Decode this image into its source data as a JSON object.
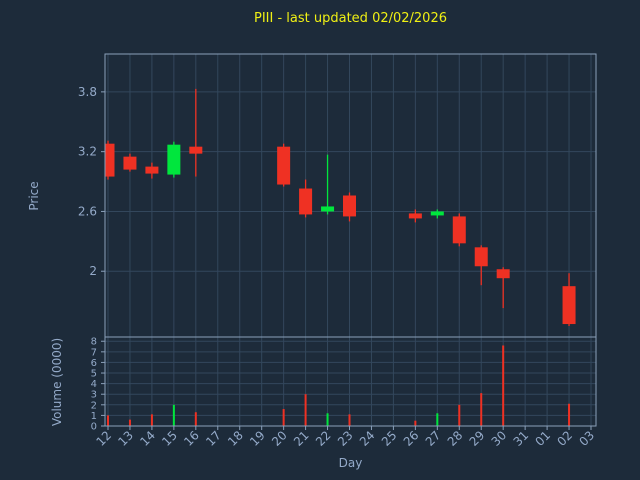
{
  "title": "PIII - last updated 02/02/2026",
  "colors": {
    "background": "#1d2b3a",
    "grid": "#33475c",
    "spine": "#8aa0ba",
    "tick_label": "#94aac9",
    "title": "#f0f014",
    "up": "#00e63d",
    "down": "#ef3123"
  },
  "chart_data": {
    "type": "candlestick",
    "title": "PIII - last updated 02/02/2026",
    "xlabel": "Day",
    "ylabel_price": "Price",
    "ylabel_volume": "Volume (0000)",
    "legend": "none",
    "grid": "on",
    "categories": [
      "12",
      "13",
      "14",
      "15",
      "16",
      "17",
      "18",
      "19",
      "20",
      "21",
      "22",
      "23",
      "24",
      "25",
      "26",
      "27",
      "28",
      "29",
      "30",
      "31",
      "01",
      "02",
      "03"
    ],
    "price_ticks": [
      2,
      2.6,
      3.2,
      3.8
    ],
    "price_ylim": [
      1.34,
      4.18
    ],
    "volume_ticks": [
      0,
      1,
      2,
      3,
      4,
      5,
      6,
      7,
      8
    ],
    "volume_ylim": [
      0,
      8.4
    ],
    "candles": [
      {
        "day": "12",
        "open": 3.28,
        "high": 3.31,
        "low": 2.92,
        "close": 2.95,
        "volume": 1.0
      },
      {
        "day": "13",
        "open": 3.15,
        "high": 3.18,
        "low": 3.0,
        "close": 3.02,
        "volume": 0.6
      },
      {
        "day": "14",
        "open": 3.05,
        "high": 3.09,
        "low": 2.93,
        "close": 2.98,
        "volume": 1.1
      },
      {
        "day": "15",
        "open": 2.97,
        "high": 3.3,
        "low": 2.94,
        "close": 3.27,
        "volume": 2.0
      },
      {
        "day": "16",
        "open": 3.25,
        "high": 3.83,
        "low": 2.95,
        "close": 3.18,
        "volume": 1.3
      },
      {
        "day": "20",
        "open": 3.25,
        "high": 3.28,
        "low": 2.85,
        "close": 2.87,
        "volume": 1.6
      },
      {
        "day": "21",
        "open": 2.83,
        "high": 2.92,
        "low": 2.54,
        "close": 2.57,
        "volume": 3.0
      },
      {
        "day": "22",
        "open": 2.6,
        "high": 3.17,
        "low": 2.57,
        "close": 2.65,
        "volume": 1.2
      },
      {
        "day": "23",
        "open": 2.76,
        "high": 2.79,
        "low": 2.5,
        "close": 2.55,
        "volume": 1.1
      },
      {
        "day": "26",
        "open": 2.58,
        "high": 2.62,
        "low": 2.49,
        "close": 2.53,
        "volume": 0.5
      },
      {
        "day": "27",
        "open": 2.56,
        "high": 2.62,
        "low": 2.53,
        "close": 2.6,
        "volume": 1.2
      },
      {
        "day": "28",
        "open": 2.55,
        "high": 2.58,
        "low": 2.25,
        "close": 2.28,
        "volume": 2.0
      },
      {
        "day": "29",
        "open": 2.24,
        "high": 2.26,
        "low": 1.86,
        "close": 2.05,
        "volume": 3.1
      },
      {
        "day": "30",
        "open": 2.02,
        "high": 2.04,
        "low": 1.63,
        "close": 1.93,
        "volume": 7.6
      },
      {
        "day": "02",
        "open": 1.85,
        "high": 1.98,
        "low": 1.45,
        "close": 1.47,
        "volume": 2.1
      }
    ]
  }
}
